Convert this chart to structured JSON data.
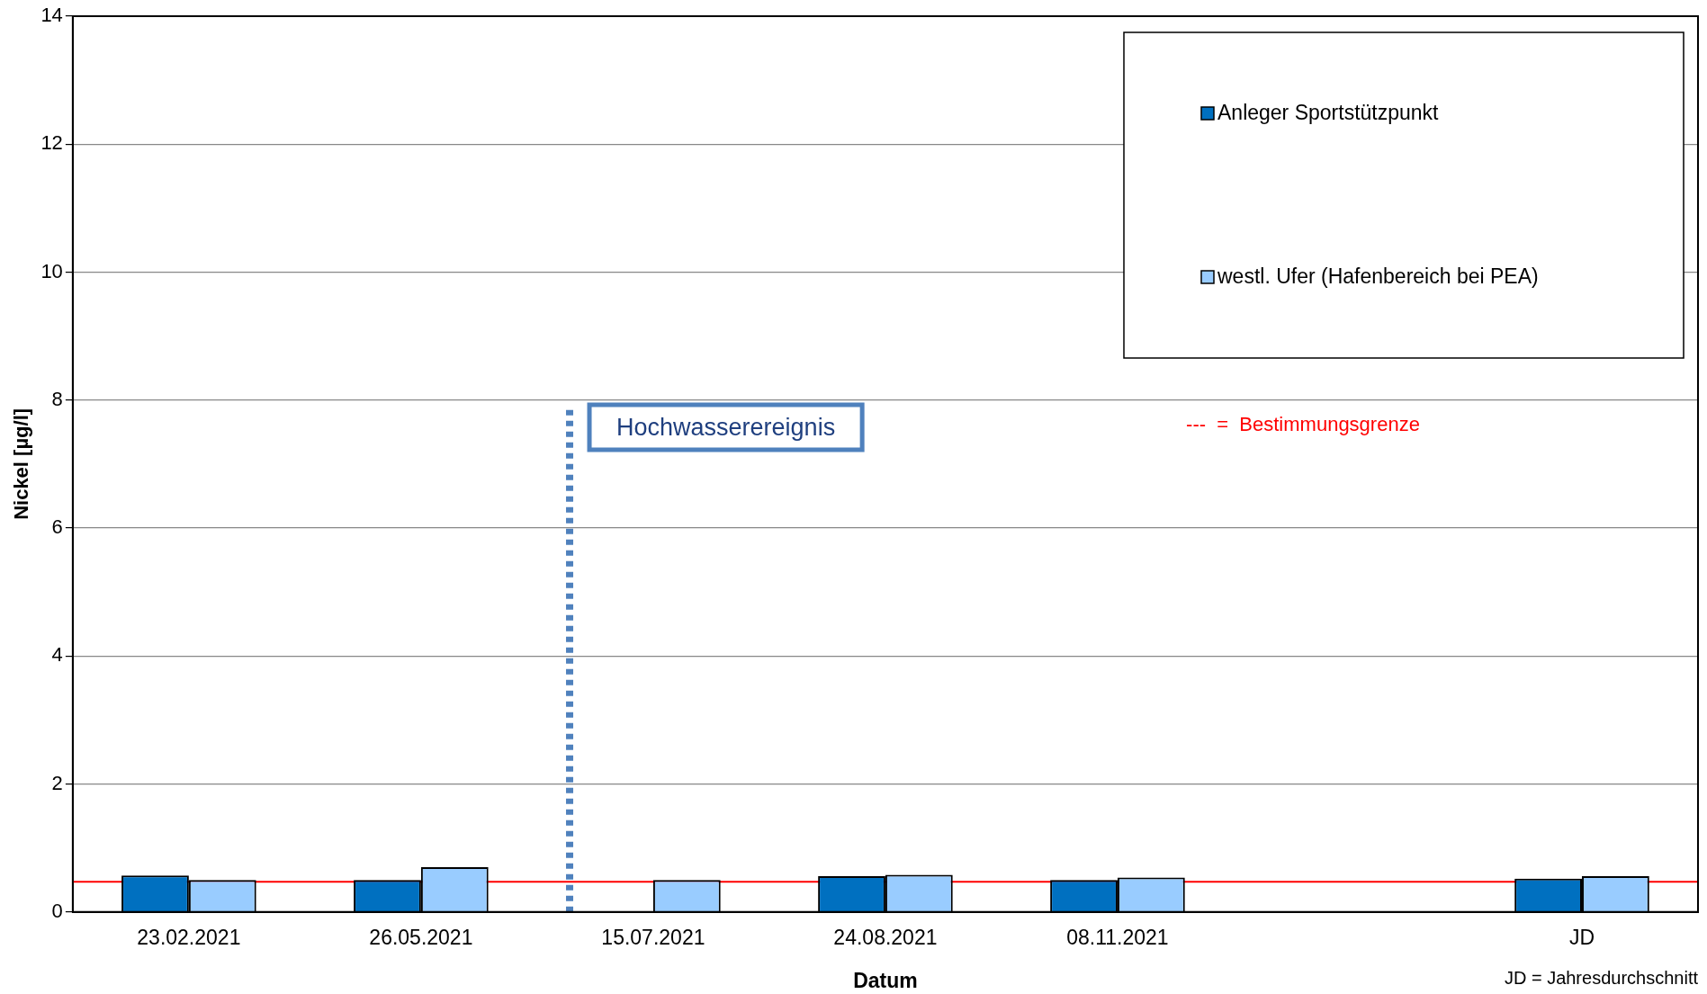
{
  "chart_data": {
    "type": "bar",
    "xlabel": "Datum",
    "ylabel": "Nickel [µg/l]",
    "categories": [
      "23.02.2021",
      "26.05.2021",
      "15.07.2021",
      "24.08.2021",
      "08.11.2021",
      null,
      "JD"
    ],
    "series": [
      {
        "name": "Anleger Sportstützpunkt",
        "color": "#0070c0",
        "values": [
          0.57,
          0.5,
          null,
          0.56,
          0.5,
          null,
          0.52
        ]
      },
      {
        "name": "westl. Ufer (Hafenbereich bei PEA)",
        "color": "#99ccff",
        "values": [
          0.5,
          0.7,
          0.5,
          0.58,
          0.54,
          null,
          0.56
        ]
      }
    ],
    "ylim": [
      0,
      14
    ],
    "yticks": [
      0,
      2,
      4,
      6,
      8,
      10,
      12,
      14
    ],
    "grid": "y",
    "legend": "top right",
    "ref_lines": [
      {
        "axis": "y",
        "value": 0.47,
        "label": "---  =  Bestimmungsgrenze",
        "color": "#ff0000",
        "line_style": "solid"
      },
      {
        "axis": "x",
        "value": "15.07.2021",
        "label": "Hochwasserereignis",
        "color": "#4f81bd",
        "line_style": "dotted"
      }
    ],
    "annotations": [
      "JD = Jahresdurchschnitt"
    ]
  }
}
